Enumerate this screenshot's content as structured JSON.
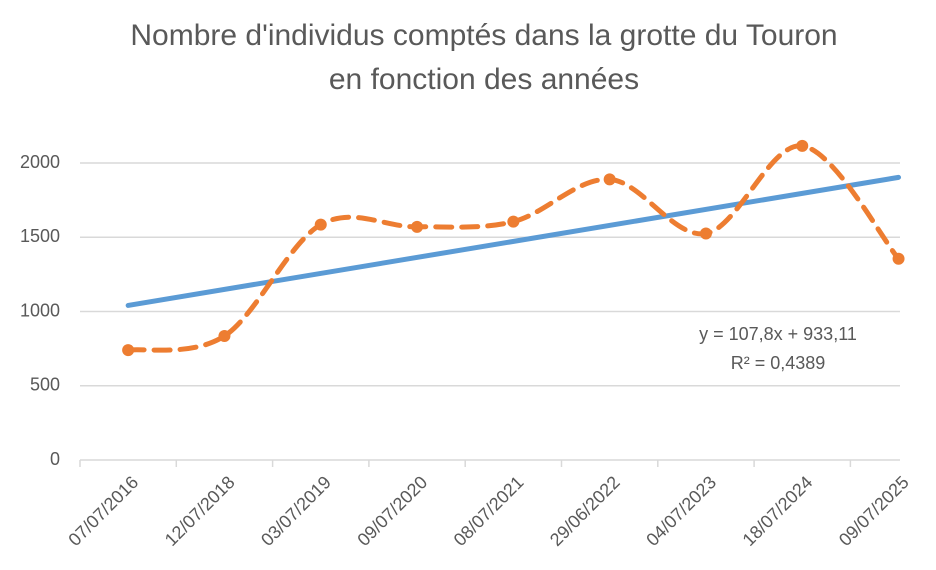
{
  "chart_data": {
    "type": "line",
    "title": "Nombre d'individus comptés dans la grotte du Touron en fonction des années",
    "categories": [
      "07/07/2016",
      "12/07/2018",
      "03/07/2019",
      "09/07/2020",
      "08/07/2021",
      "29/06/2022",
      "04/07/2023",
      "18/07/2024",
      "09/07/2025"
    ],
    "series": [
      {
        "color": "#ed7d31",
        "values": [
          740,
          835,
          1585,
          1570,
          1605,
          1890,
          1525,
          2115,
          1355
        ]
      }
    ],
    "trendline": {
      "color": "#5b9bd5",
      "start": 1040.91,
      "end": 1903.31,
      "equation": "y = 107,8x + 933,11",
      "r_squared": "R² = 0,4389"
    },
    "ylim": [
      0,
      2000
    ],
    "yticks": [
      0,
      500,
      1000,
      1500,
      2000
    ],
    "grid": true
  }
}
